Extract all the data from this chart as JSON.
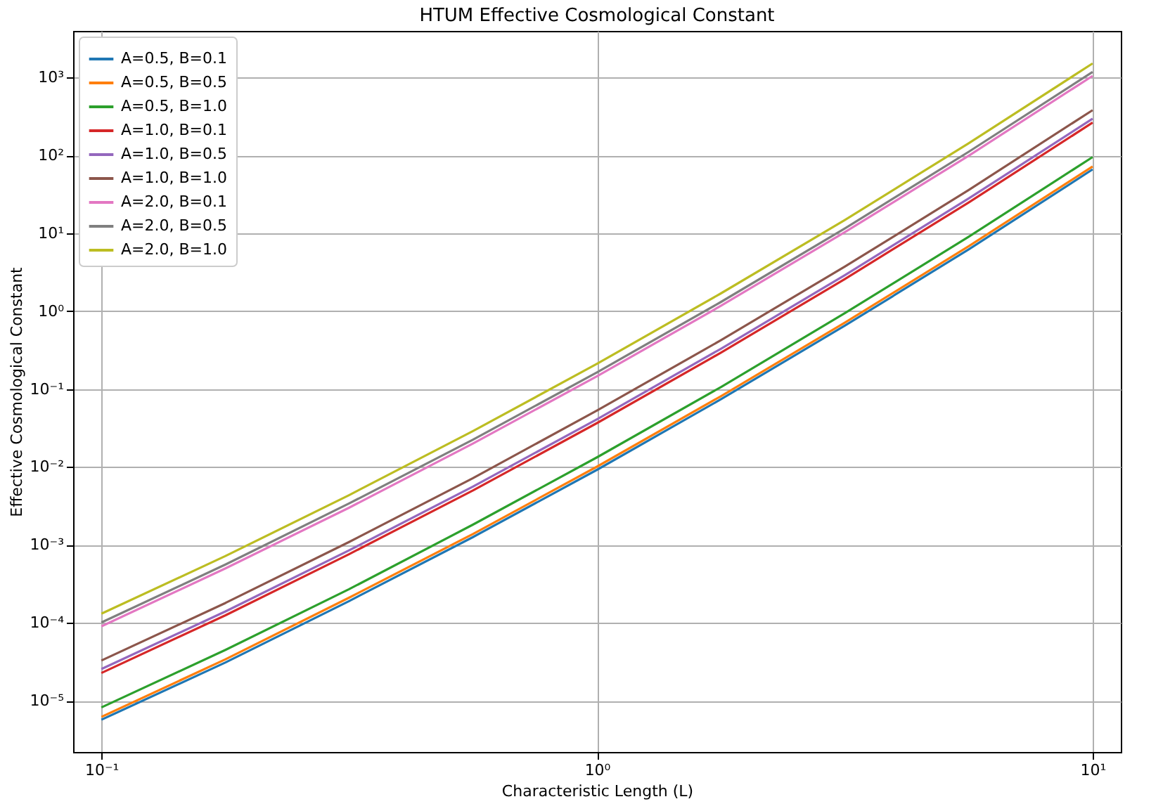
{
  "chart_data": {
    "type": "line",
    "title": "HTUM Effective Cosmological Constant",
    "xlabel": "Characteristic Length (L)",
    "ylabel": "Effective Cosmological Constant",
    "x": [
      0.1,
      0.178,
      0.316,
      0.562,
      1,
      1.778,
      3.162,
      5.623,
      10
    ],
    "series": [
      {
        "name": "A=0.5, B=0.1",
        "color": "#1f77b4",
        "values": [
          5.7e-06,
          3.1e-05,
          0.00019,
          0.00126,
          0.0092,
          0.074,
          0.65,
          6.2,
          66
        ]
      },
      {
        "name": "A=0.5, B=0.5",
        "color": "#ff7f0e",
        "values": [
          6.2e-06,
          3.4e-05,
          0.00021,
          0.00138,
          0.0101,
          0.081,
          0.71,
          6.8,
          72
        ]
      },
      {
        "name": "A=0.5, B=1.0",
        "color": "#2ca02c",
        "values": [
          8.2e-06,
          4.5e-05,
          0.00027,
          0.00182,
          0.0133,
          0.106,
          0.94,
          9.0,
          95
        ]
      },
      {
        "name": "A=1.0, B=0.1",
        "color": "#d62728",
        "values": [
          2.27e-05,
          0.000125,
          0.00076,
          0.005,
          0.0366,
          0.293,
          2.58,
          24.8,
          263
        ]
      },
      {
        "name": "A=1.0, B=0.5",
        "color": "#9467bd",
        "values": [
          2.55e-05,
          0.00014,
          0.00085,
          0.0056,
          0.041,
          0.329,
          2.89,
          27.9,
          295
        ]
      },
      {
        "name": "A=1.0, B=1.0",
        "color": "#8c564b",
        "values": [
          3.28e-05,
          0.00018,
          0.00109,
          0.0072,
          0.053,
          0.423,
          3.72,
          35.9,
          380
        ]
      },
      {
        "name": "A=2.0, B=0.1",
        "color": "#e377c2",
        "values": [
          9e-05,
          0.0005,
          0.003,
          0.02,
          0.146,
          1.17,
          10.3,
          98.9,
          1046
        ]
      },
      {
        "name": "A=2.0, B=0.5",
        "color": "#7f7f7f",
        "values": [
          0.000101,
          0.00056,
          0.0034,
          0.0224,
          0.164,
          1.31,
          11.5,
          111,
          1175
        ]
      },
      {
        "name": "A=2.0, B=1.0",
        "color": "#bcbd22",
        "values": [
          0.000131,
          0.00072,
          0.00435,
          0.0289,
          0.211,
          1.69,
          14.8,
          143,
          1511
        ]
      }
    ],
    "log": "xy",
    "xlim": [
      0.0877,
      11.4
    ],
    "xticks": [
      {
        "value": 0.1,
        "label": "10⁻¹"
      },
      {
        "value": 1,
        "label": "10⁰"
      },
      {
        "value": 10,
        "label": "10¹"
      }
    ],
    "ylim": [
      2.2e-06,
      3950
    ],
    "yticks": [
      {
        "value": 1e-05,
        "label": "10⁻⁵"
      },
      {
        "value": 0.0001,
        "label": "10⁻⁴"
      },
      {
        "value": 0.001,
        "label": "10⁻³"
      },
      {
        "value": 0.01,
        "label": "10⁻²"
      },
      {
        "value": 0.1,
        "label": "10⁻¹"
      },
      {
        "value": 1,
        "label": "10⁰"
      },
      {
        "value": 10,
        "label": "10¹"
      },
      {
        "value": 100,
        "label": "10²"
      },
      {
        "value": 1000,
        "label": "10³"
      }
    ],
    "grid": true,
    "legend": "top left",
    "marker": "none",
    "line_style": "solid"
  }
}
